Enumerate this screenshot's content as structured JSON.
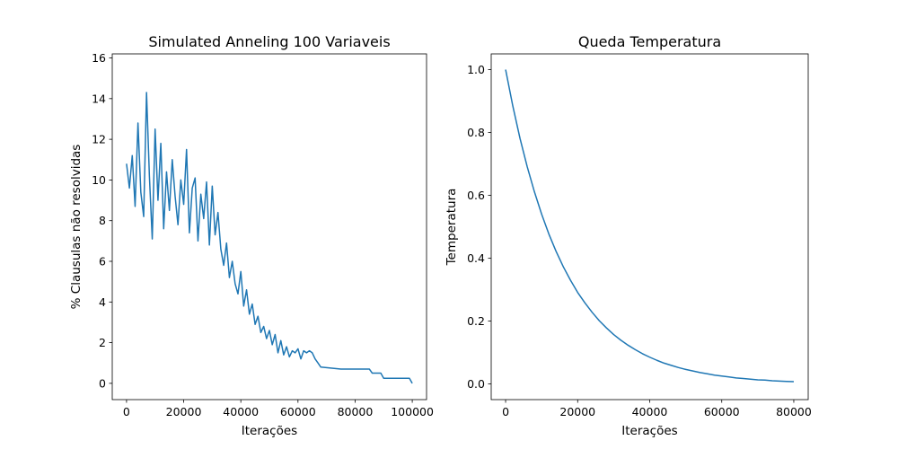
{
  "chart_data": [
    {
      "type": "line",
      "title": "Simulated Anneling 100 Variaveis",
      "xlabel": "Iterações",
      "ylabel": "% Clausulas não resolvidas",
      "xlim": [
        -5000,
        105000
      ],
      "ylim": [
        -0.8,
        16.2
      ],
      "xticks": [
        0,
        20000,
        40000,
        60000,
        80000,
        100000
      ],
      "yticks": [
        0,
        2,
        4,
        6,
        8,
        10,
        12,
        14,
        16
      ],
      "grid": false,
      "color": "#1f77b4",
      "series": [
        {
          "x": [
            0,
            1000,
            2000,
            3000,
            4000,
            5000,
            6000,
            7000,
            8000,
            9000,
            10000,
            11000,
            12000,
            13000,
            14000,
            15000,
            16000,
            17000,
            18000,
            19000,
            20000,
            21000,
            22000,
            23000,
            24000,
            25000,
            26000,
            27000,
            28000,
            29000,
            30000,
            31000,
            32000,
            33000,
            34000,
            35000,
            36000,
            37000,
            38000,
            39000,
            40000,
            41000,
            42000,
            43000,
            44000,
            45000,
            46000,
            47000,
            48000,
            49000,
            50000,
            51000,
            52000,
            53000,
            54000,
            55000,
            56000,
            57000,
            58000,
            59000,
            60000,
            61000,
            62000,
            63000,
            64000,
            65000,
            66000,
            67000,
            68000,
            75000,
            85000,
            86000,
            89000,
            90000,
            99000,
            100000
          ],
          "y": [
            10.8,
            9.6,
            11.2,
            8.7,
            12.8,
            9.4,
            8.2,
            14.3,
            10.2,
            7.1,
            12.5,
            9.0,
            11.8,
            7.6,
            10.4,
            8.5,
            11.0,
            9.2,
            7.8,
            10.0,
            8.8,
            11.5,
            7.4,
            9.6,
            10.1,
            7.0,
            9.3,
            8.1,
            9.9,
            6.8,
            9.7,
            7.3,
            8.4,
            6.6,
            5.8,
            6.9,
            5.2,
            6.0,
            4.9,
            4.4,
            5.5,
            3.8,
            4.6,
            3.4,
            3.9,
            2.9,
            3.3,
            2.5,
            2.8,
            2.2,
            2.6,
            1.9,
            2.4,
            1.5,
            2.1,
            1.4,
            1.8,
            1.3,
            1.6,
            1.5,
            1.7,
            1.2,
            1.6,
            1.5,
            1.6,
            1.5,
            1.2,
            1.0,
            0.8,
            0.7,
            0.7,
            0.5,
            0.5,
            0.25,
            0.25,
            0.0
          ]
        }
      ]
    },
    {
      "type": "line",
      "title": "Queda Temperatura",
      "xlabel": "Iterações",
      "ylabel": "Temperatura",
      "xlim": [
        -4000,
        84000
      ],
      "ylim": [
        -0.05,
        1.05
      ],
      "xticks": [
        0,
        20000,
        40000,
        60000,
        80000
      ],
      "yticks": [
        0.0,
        0.2,
        0.4,
        0.6,
        0.8,
        1.0
      ],
      "grid": false,
      "color": "#1f77b4",
      "series": [
        {
          "x": [
            0,
            2000,
            4000,
            6000,
            8000,
            10000,
            12000,
            14000,
            16000,
            18000,
            20000,
            22000,
            24000,
            26000,
            28000,
            30000,
            32000,
            34000,
            36000,
            38000,
            40000,
            42000,
            44000,
            46000,
            48000,
            50000,
            52000,
            54000,
            56000,
            58000,
            60000,
            62000,
            64000,
            66000,
            68000,
            70000,
            72000,
            74000,
            76000,
            78000,
            80000
          ],
          "y": [
            1.0,
            0.884,
            0.781,
            0.691,
            0.611,
            0.54,
            0.477,
            0.422,
            0.373,
            0.33,
            0.291,
            0.258,
            0.228,
            0.201,
            0.178,
            0.157,
            0.139,
            0.123,
            0.109,
            0.096,
            0.085,
            0.075,
            0.066,
            0.059,
            0.052,
            0.046,
            0.041,
            0.036,
            0.032,
            0.028,
            0.025,
            0.022,
            0.019,
            0.017,
            0.015,
            0.013,
            0.012,
            0.01,
            0.009,
            0.008,
            0.007
          ]
        }
      ]
    }
  ]
}
